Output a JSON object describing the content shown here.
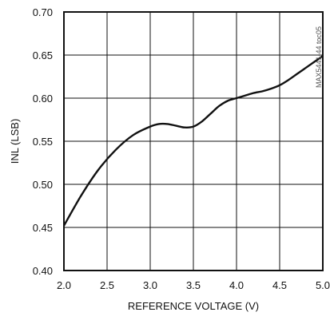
{
  "chart_data": {
    "type": "line",
    "title": "",
    "xlabel": "REFERENCE VOLTAGE (V)",
    "ylabel": "INL (LSB)",
    "xlim": [
      2.0,
      5.0
    ],
    "ylim": [
      0.4,
      0.7
    ],
    "xticks": [
      "2.0",
      "2.5",
      "3.0",
      "3.5",
      "4.0",
      "4.5",
      "5.0"
    ],
    "yticks": [
      "0.40",
      "0.45",
      "0.50",
      "0.55",
      "0.60",
      "0.65",
      "0.70"
    ],
    "grid": true,
    "side_label": "MAX5441-44 toc05",
    "series": [
      {
        "x": [
          2.0,
          2.2,
          2.4,
          2.6,
          2.8,
          3.0,
          3.1,
          3.2,
          3.3,
          3.4,
          3.5,
          3.6,
          3.7,
          3.8,
          3.9,
          4.0,
          4.1,
          4.2,
          4.3,
          4.4,
          4.5,
          4.6,
          4.7,
          4.8,
          4.9,
          5.0
        ],
        "y": [
          0.452,
          0.487,
          0.517,
          0.54,
          0.557,
          0.567,
          0.57,
          0.57,
          0.568,
          0.566,
          0.567,
          0.573,
          0.582,
          0.591,
          0.597,
          0.6,
          0.603,
          0.606,
          0.608,
          0.611,
          0.615,
          0.621,
          0.628,
          0.635,
          0.642,
          0.649
        ]
      }
    ]
  }
}
